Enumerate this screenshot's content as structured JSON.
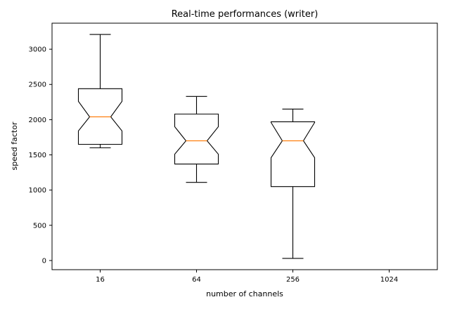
{
  "chart_data": {
    "type": "box",
    "notched": true,
    "title": "Real-time performances (writer)",
    "xlabel": "number of channels",
    "ylabel": "speed factor",
    "categories": [
      "16",
      "64",
      "256",
      "1024"
    ],
    "yticks": [
      0,
      500,
      1000,
      1500,
      2000,
      2500,
      3000
    ],
    "ylim": [
      -130,
      3370
    ],
    "boxes": [
      {
        "category": "16",
        "whisker_low": 1600,
        "q1": 1650,
        "notch_low": 1840,
        "median": 2040,
        "notch_high": 2260,
        "q3": 2440,
        "whisker_high": 3210
      },
      {
        "category": "64",
        "whisker_low": 1110,
        "q1": 1370,
        "notch_low": 1510,
        "median": 1700,
        "notch_high": 1900,
        "q3": 2080,
        "whisker_high": 2330
      },
      {
        "category": "256",
        "whisker_low": 30,
        "q1": 1050,
        "notch_low": 1460,
        "median": 1700,
        "notch_high": 1960,
        "q3": 1970,
        "whisker_high": 2150
      },
      {
        "category": "1024",
        "empty": true
      }
    ],
    "colors": {
      "box": "#000000",
      "median": "#ff7f0e"
    }
  }
}
